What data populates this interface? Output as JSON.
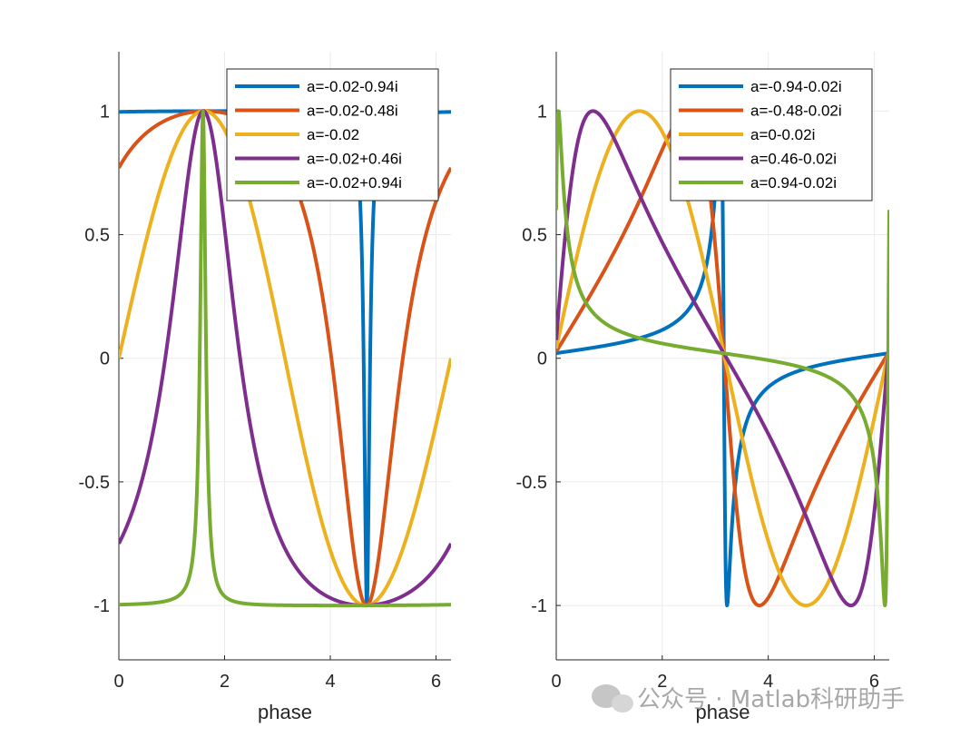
{
  "watermark": {
    "text": "公众号 · Matlab科研助手",
    "icon": "wechat-icon"
  },
  "chart_data": [
    {
      "type": "line",
      "xlabel": "phase",
      "ylabel": "",
      "xlim": [
        0,
        6.2832
      ],
      "ylim": [
        -1.22,
        1.24
      ],
      "xticks": [
        0,
        2,
        4,
        6
      ],
      "yticks": [
        -1,
        -0.5,
        0,
        0.5,
        1
      ],
      "xtick_labels": [
        "0",
        "2",
        "4",
        "6"
      ],
      "ytick_labels": [
        "-1",
        "-0.5",
        "0",
        "0.5",
        "1"
      ],
      "grid": true,
      "legend_position": "top-right",
      "series": [
        {
          "name": "a=-0.02-0.94i",
          "color": "#0072BD",
          "a_re": -0.02,
          "a_im": -0.94
        },
        {
          "name": "a=-0.02-0.48i",
          "color": "#D95319",
          "a_re": -0.02,
          "a_im": -0.48
        },
        {
          "name": "a=-0.02",
          "color": "#EDB120",
          "a_re": -0.02,
          "a_im": 0
        },
        {
          "name": "a=-0.02+0.46i",
          "color": "#7E2F8E",
          "a_re": -0.02,
          "a_im": 0.46
        },
        {
          "name": "a=-0.02+0.94i",
          "color": "#77AC30",
          "a_re": -0.02,
          "a_im": 0.94
        }
      ]
    },
    {
      "type": "line",
      "xlabel": "phase",
      "ylabel": "",
      "xlim": [
        0,
        6.2832
      ],
      "ylim": [
        -1.22,
        1.24
      ],
      "xticks": [
        0,
        2,
        4,
        6
      ],
      "yticks": [
        -1,
        -0.5,
        0,
        0.5,
        1
      ],
      "xtick_labels": [
        "0",
        "2",
        "4",
        "6"
      ],
      "ytick_labels": [
        "-1",
        "-0.5",
        "0",
        "0.5",
        "1"
      ],
      "grid": true,
      "legend_position": "top-right",
      "series": [
        {
          "name": "a=-0.94-0.02i",
          "color": "#0072BD",
          "a_re": -0.94,
          "a_im": -0.02
        },
        {
          "name": "a=-0.48-0.02i",
          "color": "#D95319",
          "a_re": -0.48,
          "a_im": -0.02
        },
        {
          "name": "a=0-0.02i",
          "color": "#EDB120",
          "a_re": 0,
          "a_im": -0.02
        },
        {
          "name": "a=0.46-0.02i",
          "color": "#7E2F8E",
          "a_re": 0.46,
          "a_im": -0.02
        },
        {
          "name": "a=0.94-0.02i",
          "color": "#77AC30",
          "a_re": 0.94,
          "a_im": -0.02
        }
      ]
    }
  ]
}
